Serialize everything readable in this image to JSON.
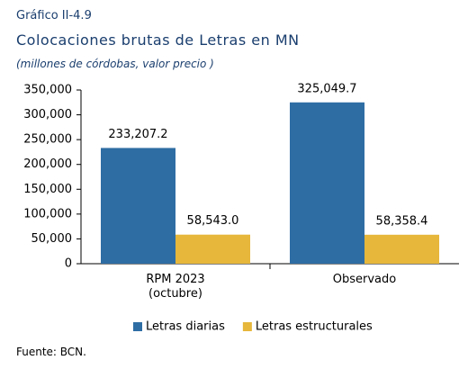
{
  "chart_data": {
    "type": "bar",
    "kicker": "Gráfico II-4.9",
    "title": "Colocaciones brutas de Letras en MN",
    "subtitle": "(millones de córdobas, valor precio )",
    "source": "Fuente: BCN.",
    "categories": [
      "RPM 2023 (octubre)",
      "Observado"
    ],
    "series": [
      {
        "name": "Letras diarias",
        "color": "#2e6da4",
        "values": [
          233207.2,
          325049.7
        ],
        "value_labels": [
          "233,207.2",
          "325,049.7"
        ]
      },
      {
        "name": "Letras estructurales",
        "color": "#e6b73b",
        "values": [
          58543.0,
          58358.4
        ],
        "value_labels": [
          "58,543.0",
          "58,358.4"
        ]
      }
    ],
    "ylim": [
      0,
      350000
    ],
    "yticks": [
      0,
      {
        "value": 50000,
        "label": "50,000"
      },
      {
        "value": 100000,
        "label": "100,000"
      },
      {
        "value": 150000,
        "label": "150,000"
      },
      {
        "value": 200000,
        "label": "200,000"
      },
      {
        "value": 250000,
        "label": "250,000"
      },
      {
        "value": 300000,
        "label": "300,000"
      },
      {
        "value": 350000,
        "label": "350,000"
      }
    ],
    "legend": "bottom"
  }
}
